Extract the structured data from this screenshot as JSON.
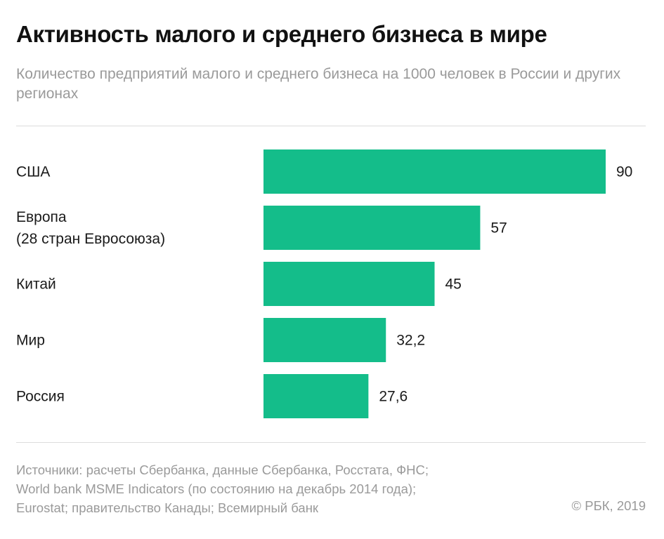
{
  "title": "Активность малого и среднего бизнеса в мире",
  "subtitle": "Количество предприятий малого и среднего бизнеса на 1000 человек в России и других регионах",
  "colors": {
    "bar": "#14bd8a",
    "text": "#1a1a1a",
    "muted": "#9a9a9a"
  },
  "chart_data": {
    "type": "bar",
    "orientation": "horizontal",
    "categories": [
      [
        "США"
      ],
      [
        "Европа",
        "(28 стран Евросоюза)"
      ],
      [
        "Китай"
      ],
      [
        "Мир"
      ],
      [
        "Россия"
      ]
    ],
    "values": [
      90,
      57,
      45,
      32.2,
      27.6
    ],
    "value_labels": [
      "90",
      "57",
      "45",
      "32,2",
      "27,6"
    ],
    "xlim": [
      0,
      90
    ],
    "grid": false,
    "legend": "none"
  },
  "footer": {
    "source_lines": [
      "Источники: расчеты Сбербанка, данные Сбербанка, Росстата, ФНС;",
      "World bank MSME Indicators (по состоянию на декабрь 2014 года);",
      "Eurostat; правительство Канады; Всемирный банк"
    ],
    "copyright": "© РБК, 2019"
  }
}
